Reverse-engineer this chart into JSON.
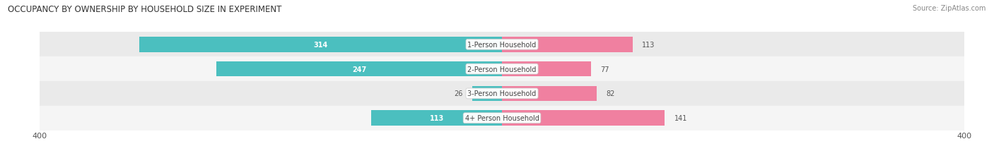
{
  "title": "OCCUPANCY BY OWNERSHIP BY HOUSEHOLD SIZE IN EXPERIMENT",
  "source": "Source: ZipAtlas.com",
  "categories": [
    "1-Person Household",
    "2-Person Household",
    "3-Person Household",
    "4+ Person Household"
  ],
  "owner_values": [
    314,
    247,
    26,
    113
  ],
  "renter_values": [
    113,
    77,
    82,
    141
  ],
  "owner_color": "#4BBFBF",
  "renter_color": "#F080A0",
  "row_bg_colors": [
    "#EAEAEA",
    "#F5F5F5",
    "#EAEAEA",
    "#F5F5F5"
  ],
  "axis_max": 400,
  "bar_height": 0.62,
  "figsize": [
    14.06,
    2.32
  ],
  "dpi": 100,
  "owner_threshold": 100
}
